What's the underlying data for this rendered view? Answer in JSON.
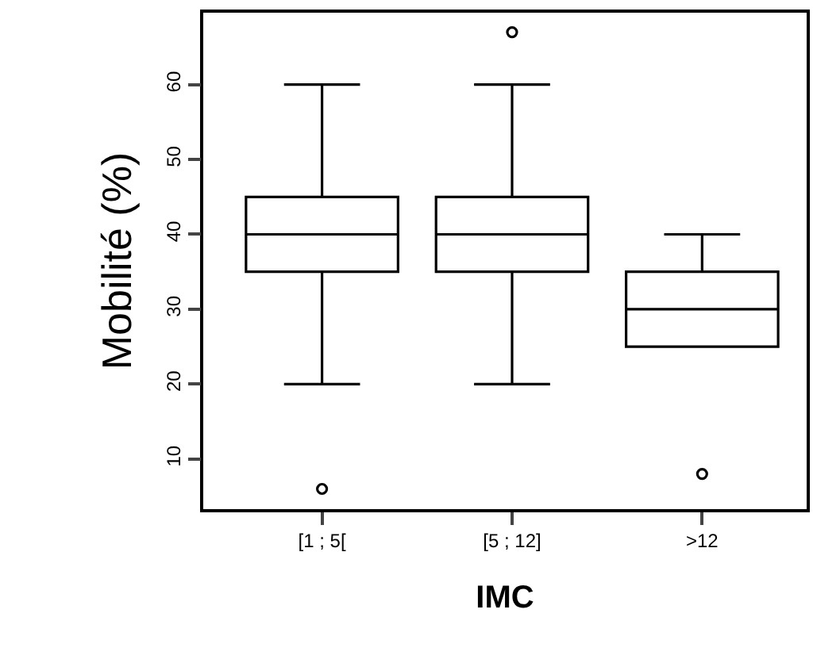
{
  "chart_data": {
    "type": "box",
    "xlabel": "IMC",
    "ylabel": "Mobilité (%)",
    "categories": [
      "[1 ; 5[",
      "[5 ; 12]",
      ">12"
    ],
    "boxes": [
      {
        "low": 20,
        "q1": 35,
        "median": 40,
        "q3": 45,
        "high": 60,
        "outliers": [
          6
        ]
      },
      {
        "low": 20,
        "q1": 35,
        "median": 40,
        "q3": 45,
        "high": 60,
        "outliers": [
          67
        ]
      },
      {
        "low": 25,
        "q1": 25,
        "median": 30,
        "q3": 35,
        "high": 40,
        "outliers": [
          8
        ]
      }
    ],
    "ylim": [
      3.3,
      69.6
    ],
    "yticks": [
      10,
      20,
      30,
      40,
      50,
      60
    ]
  }
}
